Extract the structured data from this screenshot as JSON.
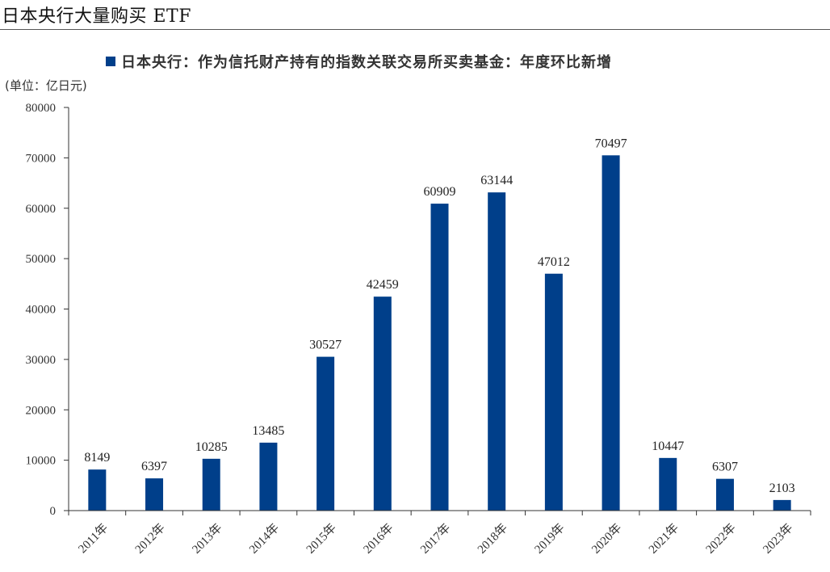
{
  "header": {
    "title": "日本央行大量购买 ETF"
  },
  "chart_data": {
    "type": "bar",
    "series_name": "日本央行：作为信托财产持有的指数关联交易所买卖基金：年度环比新增",
    "unit_label": "(单位：亿日元)",
    "categories": [
      "2011年",
      "2012年",
      "2013年",
      "2014年",
      "2015年",
      "2016年",
      "2017年",
      "2018年",
      "2019年",
      "2020年",
      "2021年",
      "2022年",
      "2023年"
    ],
    "values": [
      8149,
      6397,
      10285,
      13485,
      30527,
      42459,
      60909,
      63144,
      47012,
      70497,
      10447,
      6307,
      2103
    ],
    "ylim": [
      0,
      80000
    ],
    "yticks": [
      "0",
      "10000",
      "20000",
      "30000",
      "40000",
      "50000",
      "60000",
      "70000",
      "80000"
    ],
    "bar_color": "#003F8A",
    "legend_position": "top-center",
    "grid": false
  }
}
